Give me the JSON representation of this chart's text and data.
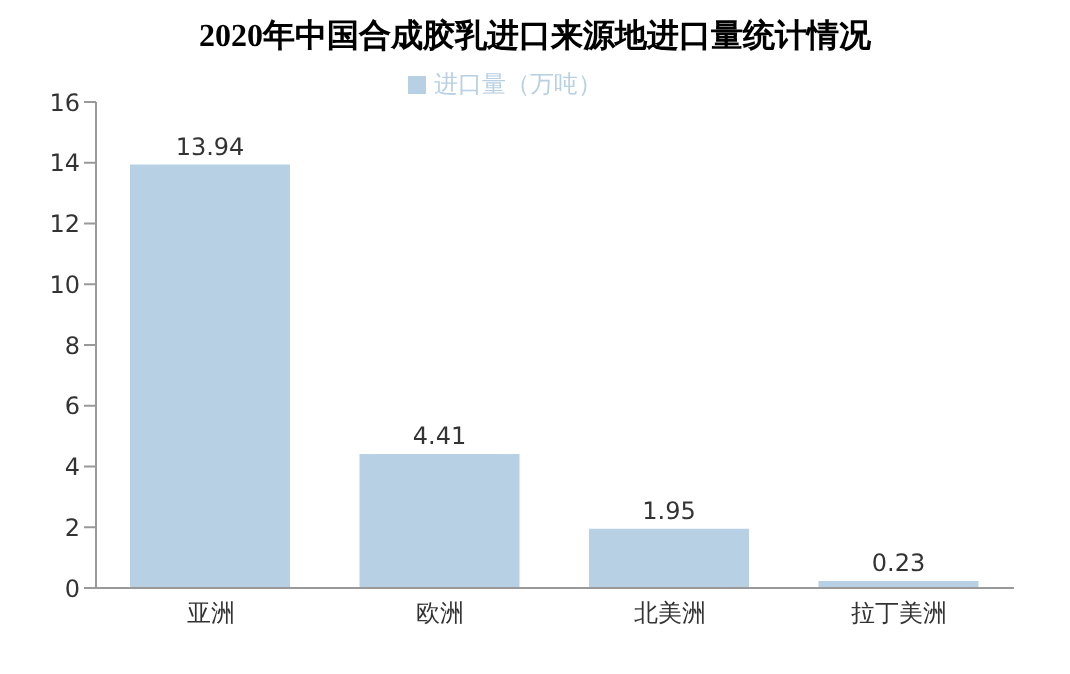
{
  "chart_data": {
    "type": "bar",
    "title": "2020年中国合成胶乳进口来源地进口量统计情况",
    "categories": [
      "亚洲",
      "欧洲",
      "北美洲",
      "拉丁美洲"
    ],
    "series": [
      {
        "name": "进口量（万吨）",
        "color": "#b7d0e3",
        "values": [
          13.94,
          4.41,
          1.95,
          0.23
        ]
      }
    ],
    "data_labels": true,
    "ylim": [
      0,
      16
    ],
    "yticks": [
      0,
      2,
      4,
      6,
      8,
      10,
      12,
      14,
      16
    ],
    "legend": "top",
    "grid": false
  }
}
